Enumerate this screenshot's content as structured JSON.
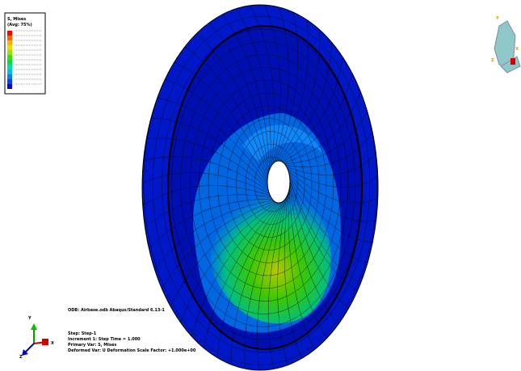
{
  "legend": {
    "title": "S, Mises",
    "subtitle": "(Avg: 75%)"
  },
  "info": {
    "odb": "ODB: Airbase.odb    Abaqus/Standard 6.13-1",
    "step": "Step: Step-1",
    "increment": "Increment    1: Step Time =    1.000",
    "primary": "Primary Var: S, Mises",
    "deformed": "Deformed Var: U   Deformation Scale Factor: +1.000e+00"
  },
  "triad": {
    "y": "Y",
    "z": "Z",
    "x": "X"
  },
  "view_cube": {
    "y": "Y",
    "x": "X",
    "z": "Z"
  }
}
